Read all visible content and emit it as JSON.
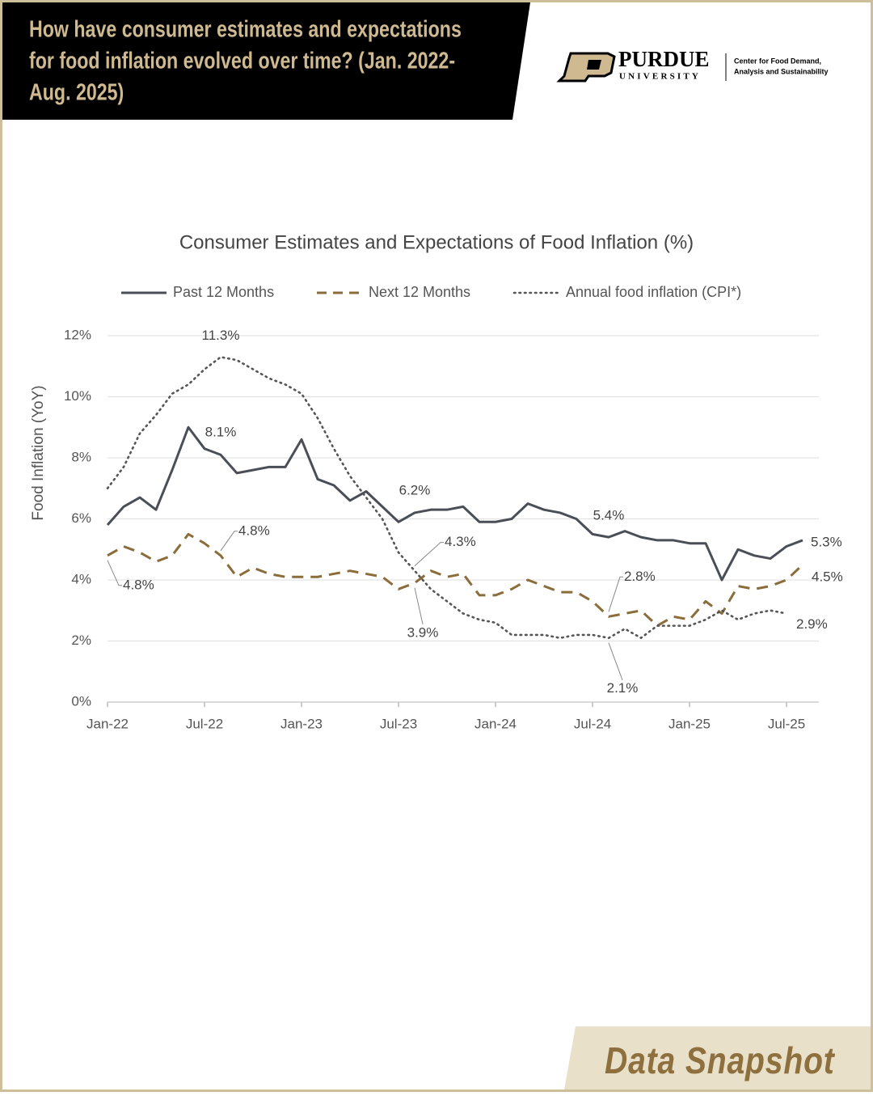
{
  "header": {
    "title_lines": [
      "How have consumer estimates and expectations",
      "for food inflation evolved over time? (Jan. 2022-",
      "Aug. 2025)"
    ],
    "logo": {
      "name": "PURDUE",
      "sub": "UNIVERSITY",
      "center_lines": [
        "Center for Food Demand,",
        "Analysis and Sustainability"
      ]
    }
  },
  "footer": {
    "tag": "Data Snapshot"
  },
  "chart_data": {
    "type": "line",
    "title": "Consumer Estimates and Expectations of Food Inflation (%)",
    "y_label": "Food Inflation (YoY)",
    "categories": [
      "Jan-22",
      null,
      null,
      null,
      null,
      null,
      "Jul-22",
      null,
      null,
      null,
      null,
      null,
      "Jan-23",
      null,
      null,
      null,
      null,
      null,
      "Jul-23",
      null,
      null,
      null,
      null,
      null,
      "Jan-24",
      null,
      null,
      null,
      null,
      null,
      "Jul-24",
      null,
      null,
      null,
      null,
      null,
      "Jan-25",
      null,
      null,
      null,
      null,
      null,
      "Jul-25",
      null
    ],
    "ylim": [
      0,
      12
    ],
    "yticks": [
      {
        "value": 0,
        "label": "0%"
      },
      {
        "value": 2,
        "label": "2%"
      },
      {
        "value": 4,
        "label": "4%"
      },
      {
        "value": 6,
        "label": "6%"
      },
      {
        "value": 8,
        "label": "8%"
      },
      {
        "value": 10,
        "label": "10%"
      },
      {
        "value": 12,
        "label": "12%"
      }
    ],
    "grid": true,
    "legend": "top",
    "series": [
      {
        "name": "Past 12 Months",
        "color": "#4a4f57",
        "line_style": "solid",
        "values": [
          5.8,
          6.4,
          6.7,
          6.3,
          7.6,
          9.0,
          8.3,
          8.1,
          7.5,
          7.6,
          7.7,
          7.7,
          8.6,
          7.3,
          7.1,
          6.6,
          6.9,
          6.4,
          5.9,
          6.2,
          6.3,
          6.3,
          6.4,
          5.9,
          5.9,
          6.0,
          6.5,
          6.3,
          6.2,
          6.0,
          5.5,
          5.4,
          5.6,
          5.4,
          5.3,
          5.3,
          5.2,
          5.2,
          4.0,
          5.0,
          4.8,
          4.7,
          5.1,
          5.3
        ],
        "value_labels": [
          null,
          null,
          null,
          null,
          null,
          null,
          null,
          "8.1%",
          null,
          null,
          null,
          null,
          null,
          null,
          null,
          null,
          null,
          null,
          null,
          "6.2%",
          null,
          null,
          null,
          null,
          null,
          null,
          null,
          null,
          null,
          null,
          null,
          "5.4%",
          null,
          null,
          null,
          null,
          null,
          null,
          null,
          null,
          null,
          null,
          null,
          "5.3%"
        ]
      },
      {
        "name": "Next 12 Months",
        "color": "#8b6d3b",
        "line_style": "dashed",
        "values": [
          4.8,
          5.1,
          4.9,
          4.6,
          4.8,
          5.5,
          5.2,
          4.8,
          4.1,
          4.4,
          4.2,
          4.1,
          4.1,
          4.1,
          4.2,
          4.3,
          4.2,
          4.1,
          3.7,
          3.9,
          4.3,
          4.1,
          4.2,
          3.5,
          3.5,
          3.7,
          4.0,
          3.8,
          3.6,
          3.6,
          3.3,
          2.8,
          2.9,
          3.0,
          2.5,
          2.8,
          2.7,
          3.3,
          2.9,
          3.8,
          3.7,
          3.8,
          4.0,
          4.5
        ],
        "value_labels": [
          "4.8%",
          null,
          null,
          null,
          null,
          null,
          null,
          "4.8%",
          null,
          null,
          null,
          null,
          null,
          null,
          null,
          null,
          null,
          null,
          null,
          "3.9%",
          null,
          null,
          null,
          null,
          null,
          null,
          null,
          null,
          null,
          null,
          null,
          "2.8%",
          null,
          null,
          null,
          null,
          null,
          null,
          null,
          null,
          null,
          null,
          null,
          "4.5%"
        ]
      },
      {
        "name": "Annual food inflation (CPI*)",
        "color": "#555555",
        "line_style": "dotted",
        "values": [
          7.0,
          7.7,
          8.8,
          9.4,
          10.1,
          10.4,
          10.9,
          11.3,
          11.2,
          10.9,
          10.6,
          10.4,
          10.1,
          9.3,
          8.3,
          7.4,
          6.7,
          6.0,
          4.9,
          4.3,
          3.7,
          3.3,
          2.9,
          2.7,
          2.6,
          2.2,
          2.2,
          2.2,
          2.1,
          2.2,
          2.2,
          2.1,
          2.4,
          2.1,
          2.5,
          2.5,
          2.5,
          2.7,
          3.0,
          2.7,
          2.9,
          3.0,
          2.9,
          null
        ],
        "value_labels": [
          null,
          null,
          null,
          null,
          null,
          null,
          null,
          "11.3%",
          null,
          null,
          null,
          null,
          null,
          null,
          null,
          null,
          null,
          null,
          null,
          "4.3%",
          null,
          null,
          null,
          null,
          null,
          null,
          null,
          null,
          null,
          null,
          null,
          "2.1%",
          null,
          null,
          null,
          null,
          null,
          null,
          null,
          null,
          null,
          null,
          "2.9%",
          null
        ]
      }
    ]
  }
}
